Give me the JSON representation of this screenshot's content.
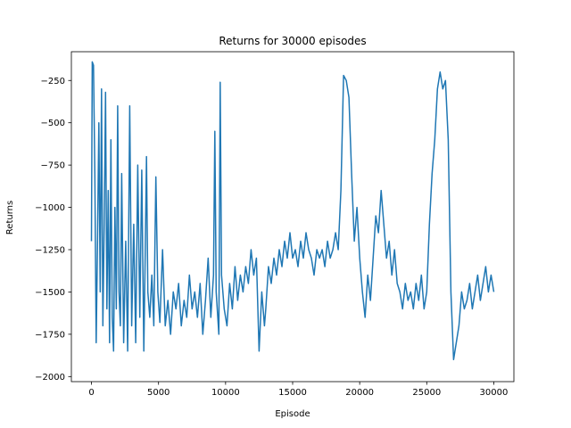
{
  "chart_data": {
    "type": "line",
    "title": "Returns for 30000 episodes",
    "xlabel": "Episode",
    "ylabel": "Returns",
    "xlim": [
      -1500,
      31500
    ],
    "ylim": [
      -2030,
      -80
    ],
    "xticks": [
      0,
      5000,
      10000,
      15000,
      20000,
      25000,
      30000
    ],
    "xtick_labels": [
      "0",
      "5000",
      "10000",
      "15000",
      "20000",
      "25000",
      "30000"
    ],
    "yticks": [
      -2000,
      -1750,
      -1500,
      -1250,
      -1000,
      -750,
      -500,
      -250
    ],
    "ytick_labels": [
      "−2000",
      "−1750",
      "−1500",
      "−1250",
      "−1000",
      "−750",
      "−500",
      "−250"
    ],
    "grid": false,
    "series": [
      {
        "color": "#1f77b4",
        "points": [
          [
            0,
            -1200
          ],
          [
            60,
            -140
          ],
          [
            150,
            -160
          ],
          [
            250,
            -800
          ],
          [
            350,
            -1800
          ],
          [
            450,
            -1200
          ],
          [
            550,
            -500
          ],
          [
            650,
            -1500
          ],
          [
            750,
            -300
          ],
          [
            850,
            -1700
          ],
          [
            950,
            -1100
          ],
          [
            1050,
            -320
          ],
          [
            1150,
            -1600
          ],
          [
            1250,
            -900
          ],
          [
            1350,
            -1800
          ],
          [
            1450,
            -600
          ],
          [
            1550,
            -1650
          ],
          [
            1650,
            -1850
          ],
          [
            1750,
            -1000
          ],
          [
            1850,
            -1600
          ],
          [
            1950,
            -400
          ],
          [
            2050,
            -1500
          ],
          [
            2150,
            -1700
          ],
          [
            2250,
            -800
          ],
          [
            2400,
            -1800
          ],
          [
            2550,
            -1200
          ],
          [
            2700,
            -1850
          ],
          [
            2850,
            -400
          ],
          [
            3000,
            -1700
          ],
          [
            3150,
            -1100
          ],
          [
            3300,
            -1800
          ],
          [
            3450,
            -750
          ],
          [
            3600,
            -1650
          ],
          [
            3750,
            -780
          ],
          [
            3900,
            -1850
          ],
          [
            4000,
            -1300
          ],
          [
            4100,
            -700
          ],
          [
            4200,
            -1500
          ],
          [
            4350,
            -1650
          ],
          [
            4500,
            -1400
          ],
          [
            4650,
            -1700
          ],
          [
            4800,
            -820
          ],
          [
            4950,
            -1500
          ],
          [
            5100,
            -1680
          ],
          [
            5300,
            -1250
          ],
          [
            5500,
            -1700
          ],
          [
            5700,
            -1550
          ],
          [
            5900,
            -1750
          ],
          [
            6100,
            -1500
          ],
          [
            6300,
            -1600
          ],
          [
            6500,
            -1450
          ],
          [
            6700,
            -1700
          ],
          [
            6900,
            -1550
          ],
          [
            7100,
            -1650
          ],
          [
            7300,
            -1400
          ],
          [
            7500,
            -1600
          ],
          [
            7700,
            -1500
          ],
          [
            7900,
            -1650
          ],
          [
            8100,
            -1450
          ],
          [
            8300,
            -1750
          ],
          [
            8500,
            -1550
          ],
          [
            8700,
            -1300
          ],
          [
            8900,
            -1650
          ],
          [
            9100,
            -1400
          ],
          [
            9200,
            -550
          ],
          [
            9300,
            -1500
          ],
          [
            9500,
            -1750
          ],
          [
            9600,
            -260
          ],
          [
            9700,
            -1400
          ],
          [
            9900,
            -1600
          ],
          [
            10100,
            -1700
          ],
          [
            10300,
            -1450
          ],
          [
            10500,
            -1600
          ],
          [
            10700,
            -1350
          ],
          [
            10900,
            -1550
          ],
          [
            11100,
            -1400
          ],
          [
            11300,
            -1500
          ],
          [
            11500,
            -1350
          ],
          [
            11700,
            -1450
          ],
          [
            11900,
            -1250
          ],
          [
            12100,
            -1400
          ],
          [
            12300,
            -1300
          ],
          [
            12500,
            -1850
          ],
          [
            12700,
            -1500
          ],
          [
            12900,
            -1700
          ],
          [
            13000,
            -1600
          ],
          [
            13200,
            -1350
          ],
          [
            13400,
            -1450
          ],
          [
            13600,
            -1300
          ],
          [
            13800,
            -1400
          ],
          [
            14000,
            -1250
          ],
          [
            14200,
            -1350
          ],
          [
            14400,
            -1200
          ],
          [
            14600,
            -1300
          ],
          [
            14800,
            -1150
          ],
          [
            15000,
            -1300
          ],
          [
            15200,
            -1250
          ],
          [
            15400,
            -1350
          ],
          [
            15600,
            -1200
          ],
          [
            15800,
            -1300
          ],
          [
            16000,
            -1150
          ],
          [
            16200,
            -1250
          ],
          [
            16400,
            -1300
          ],
          [
            16600,
            -1400
          ],
          [
            16800,
            -1250
          ],
          [
            17000,
            -1300
          ],
          [
            17200,
            -1250
          ],
          [
            17400,
            -1350
          ],
          [
            17600,
            -1200
          ],
          [
            17800,
            -1300
          ],
          [
            18000,
            -1250
          ],
          [
            18200,
            -1150
          ],
          [
            18400,
            -1250
          ],
          [
            18600,
            -900
          ],
          [
            18800,
            -220
          ],
          [
            19000,
            -250
          ],
          [
            19200,
            -350
          ],
          [
            19400,
            -800
          ],
          [
            19600,
            -1200
          ],
          [
            19800,
            -1000
          ],
          [
            20000,
            -1300
          ],
          [
            20200,
            -1500
          ],
          [
            20400,
            -1650
          ],
          [
            20600,
            -1400
          ],
          [
            20800,
            -1550
          ],
          [
            21000,
            -1300
          ],
          [
            21200,
            -1050
          ],
          [
            21400,
            -1150
          ],
          [
            21600,
            -900
          ],
          [
            21800,
            -1100
          ],
          [
            22000,
            -1300
          ],
          [
            22200,
            -1200
          ],
          [
            22400,
            -1400
          ],
          [
            22600,
            -1250
          ],
          [
            22800,
            -1450
          ],
          [
            23000,
            -1500
          ],
          [
            23200,
            -1600
          ],
          [
            23400,
            -1450
          ],
          [
            23600,
            -1550
          ],
          [
            23800,
            -1500
          ],
          [
            24000,
            -1600
          ],
          [
            24200,
            -1450
          ],
          [
            24400,
            -1550
          ],
          [
            24600,
            -1400
          ],
          [
            24800,
            -1600
          ],
          [
            25000,
            -1500
          ],
          [
            25200,
            -1100
          ],
          [
            25400,
            -800
          ],
          [
            25600,
            -600
          ],
          [
            25800,
            -300
          ],
          [
            26000,
            -200
          ],
          [
            26200,
            -300
          ],
          [
            26400,
            -250
          ],
          [
            26600,
            -600
          ],
          [
            26800,
            -1500
          ],
          [
            27000,
            -1900
          ],
          [
            27200,
            -1800
          ],
          [
            27400,
            -1700
          ],
          [
            27600,
            -1500
          ],
          [
            27800,
            -1600
          ],
          [
            28000,
            -1550
          ],
          [
            28200,
            -1450
          ],
          [
            28400,
            -1600
          ],
          [
            28600,
            -1500
          ],
          [
            28800,
            -1400
          ],
          [
            29000,
            -1550
          ],
          [
            29200,
            -1450
          ],
          [
            29400,
            -1350
          ],
          [
            29600,
            -1500
          ],
          [
            29800,
            -1400
          ],
          [
            30000,
            -1500
          ]
        ]
      }
    ]
  }
}
